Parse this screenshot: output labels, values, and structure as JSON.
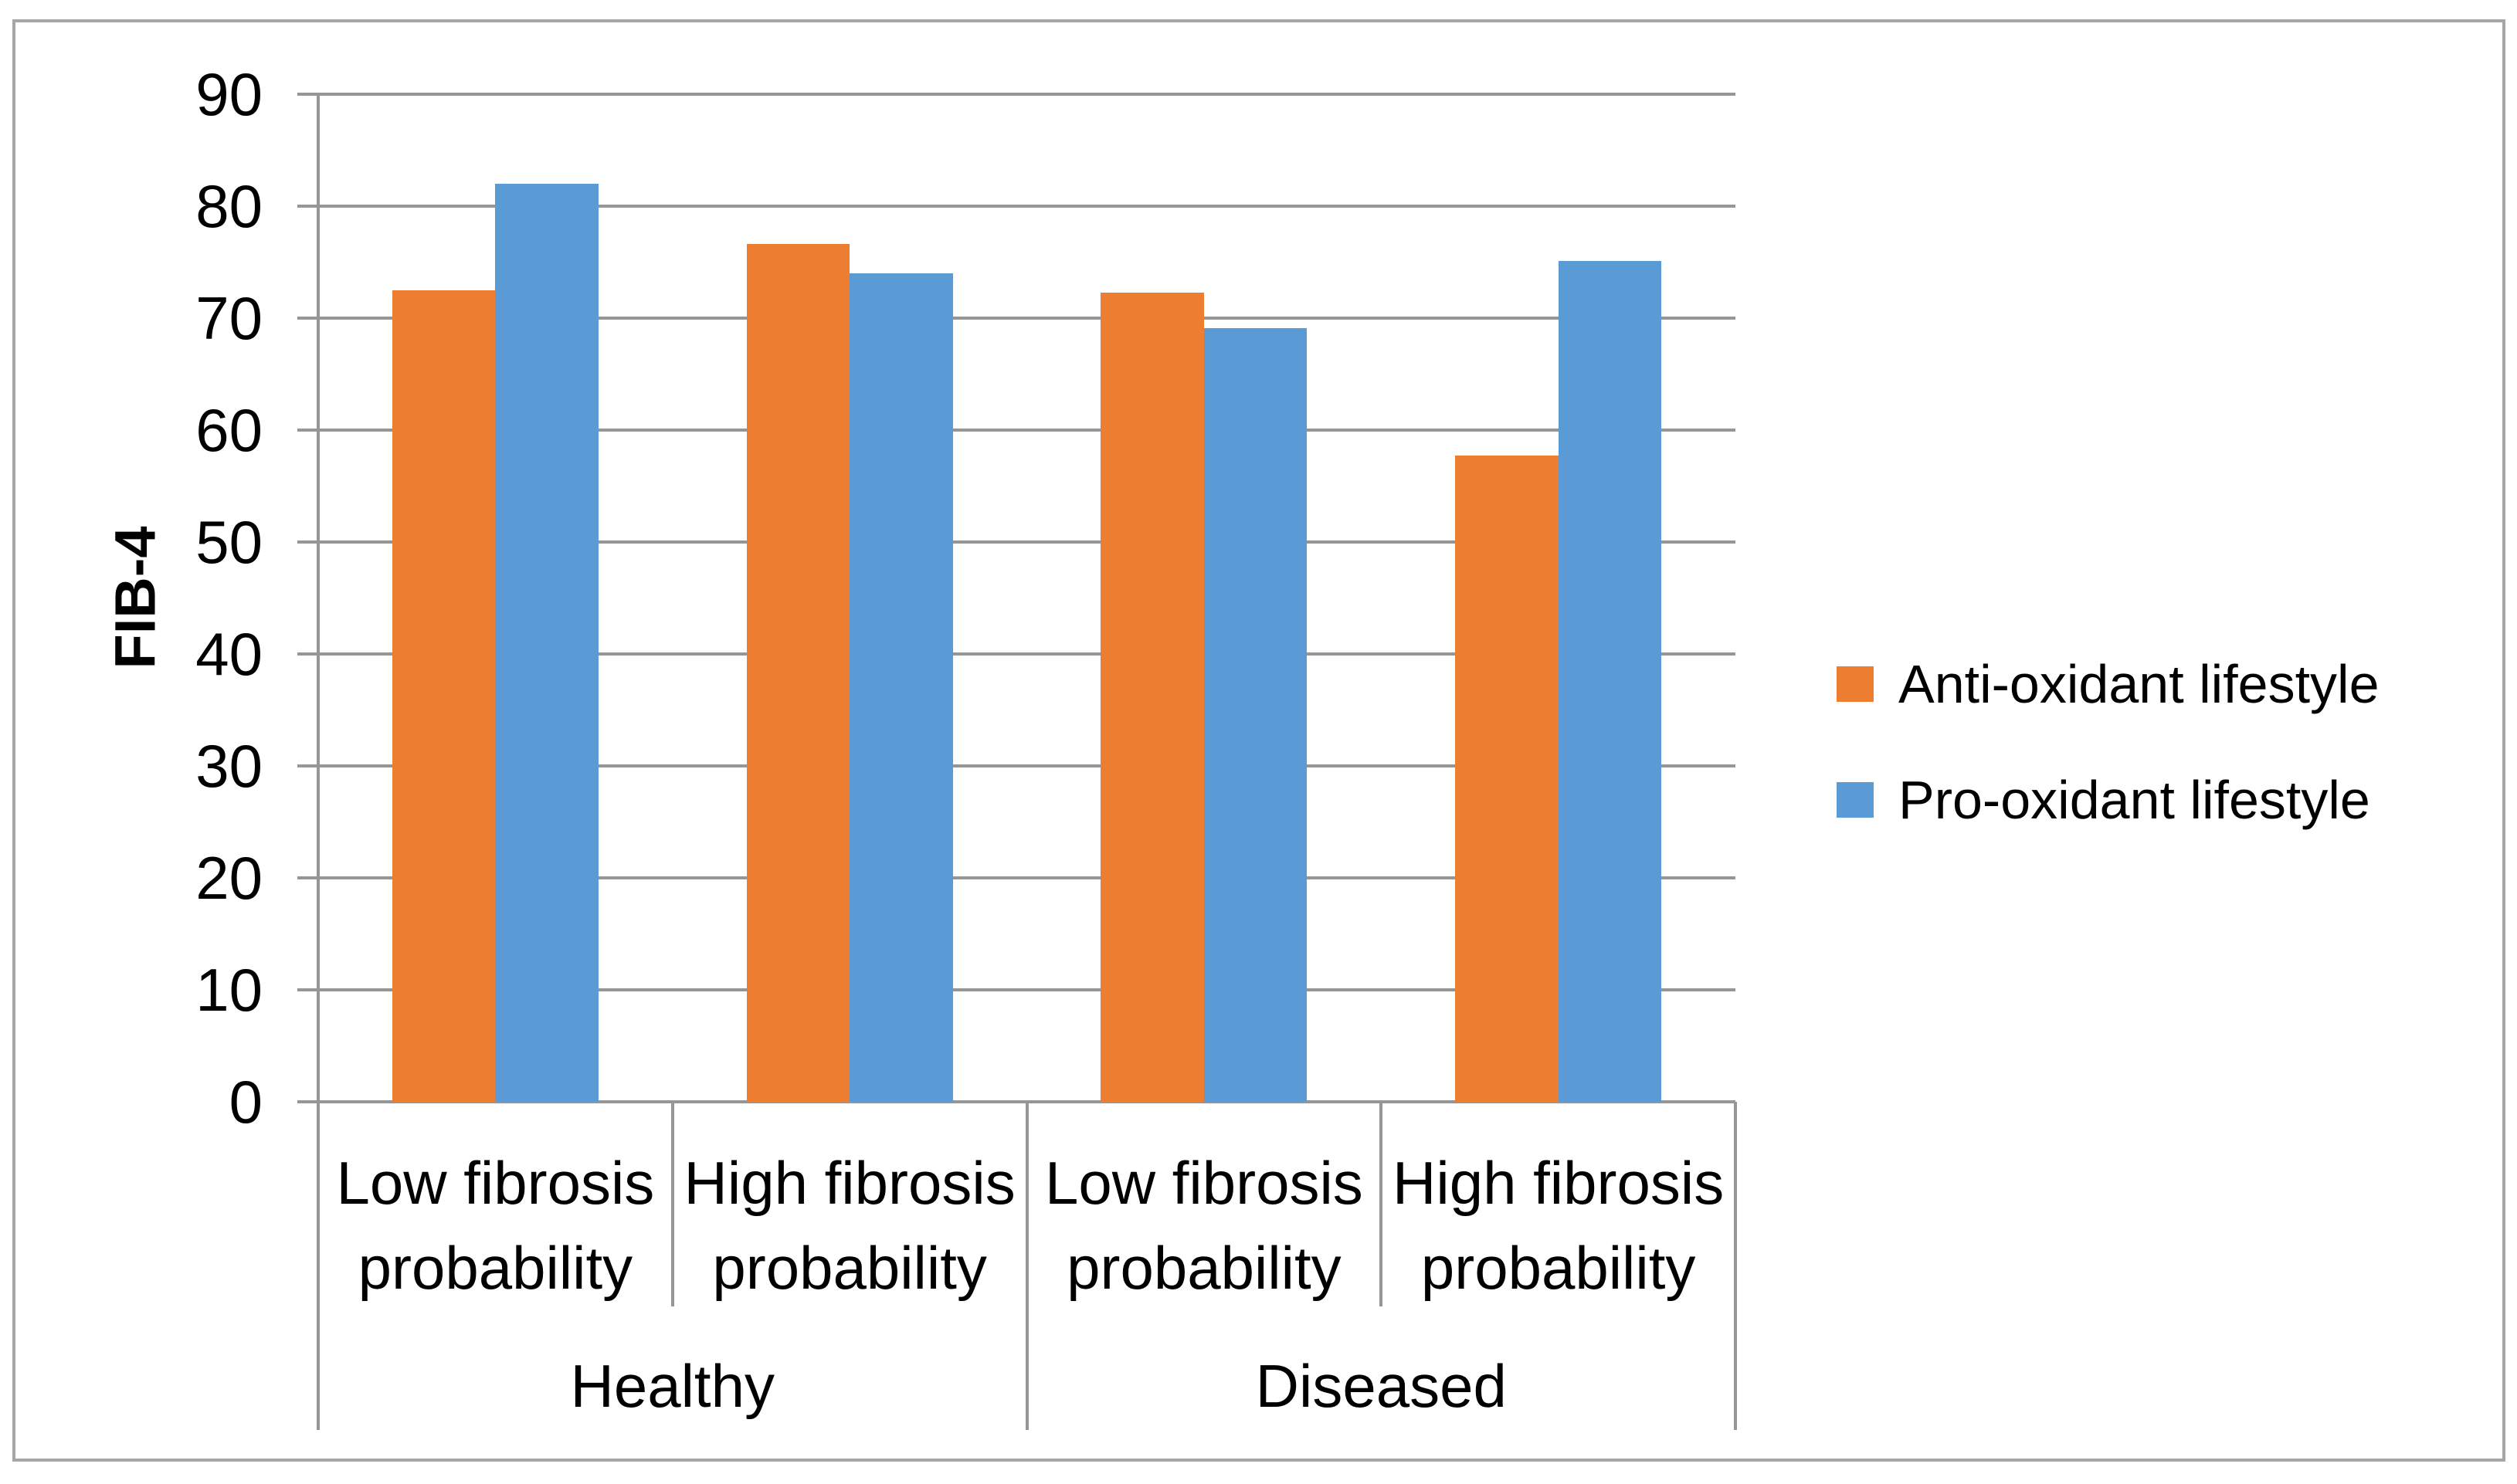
{
  "y_axis": {
    "title": "FIB-4",
    "ticks": [
      90,
      80,
      70,
      60,
      50,
      40,
      30,
      20,
      10,
      0
    ]
  },
  "chart_data": {
    "type": "bar",
    "title": "",
    "xlabel": "",
    "ylabel": "FIB-4",
    "ylim": [
      0,
      90
    ],
    "ytick_step": 10,
    "grid": true,
    "legend_position": "right",
    "groups": [
      "Healthy",
      "Diseased"
    ],
    "categories": [
      {
        "group": "Healthy",
        "label": "Low fibrosis probability",
        "label_lines": [
          "Low fibrosis",
          "probability"
        ]
      },
      {
        "group": "Healthy",
        "label": "High fibrosis probability",
        "label_lines": [
          "High fibrosis",
          "probability"
        ]
      },
      {
        "group": "Diseased",
        "label": "Low fibrosis probability",
        "label_lines": [
          "Low fibrosis",
          "probability"
        ]
      },
      {
        "group": "Diseased",
        "label": "High fibrosis probability",
        "label_lines": [
          "High fibrosis",
          "probability"
        ]
      }
    ],
    "series": [
      {
        "name": "Anti-oxidant lifestyle",
        "color": "#ED7D31",
        "values": [
          72.5,
          76.6,
          72.3,
          57.7
        ]
      },
      {
        "name": "Pro-oxidant lifestyle",
        "color": "#5B9BD5",
        "values": [
          82.0,
          74.0,
          69.1,
          75.1
        ]
      }
    ]
  },
  "colors": {
    "grid": "#969696",
    "axis": "#969696",
    "figure_border": "#a6a6a6",
    "text": "#000000",
    "background": "#ffffff"
  }
}
